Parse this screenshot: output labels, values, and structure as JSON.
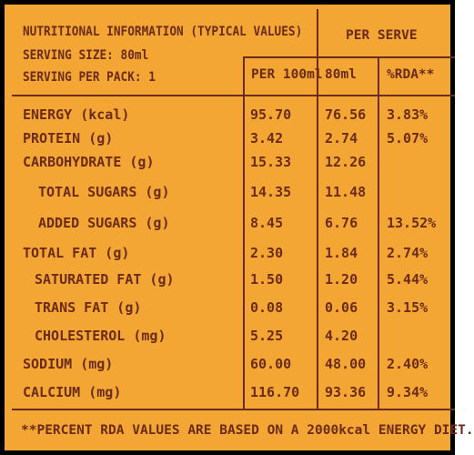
{
  "header": {
    "title": "NUTRITIONAL INFORMATION (TYPICAL VALUES)",
    "serving_size": "SERVING SIZE: 80ml",
    "servings_per_pack": "SERVING PER PACK: 1",
    "per_serve": "PER SERVE",
    "col_per100": "PER 100ml",
    "col_80ml": "80ml",
    "col_rda": "%RDA**"
  },
  "rows": [
    {
      "name": "ENERGY (kcal)",
      "per100": "95.70",
      "per80": "76.56",
      "rda": "3.83%"
    },
    {
      "name": "PROTEIN (g)",
      "per100": "3.42",
      "per80": "2.74",
      "rda": "5.07%"
    },
    {
      "name": "CARBOHYDRATE (g)",
      "per100": "15.33",
      "per80": "12.26",
      "rda": ""
    },
    {
      "name": "TOTAL SUGARS (g)",
      "per100": "14.35",
      "per80": "11.48",
      "rda": ""
    },
    {
      "name": "ADDED SUGARS (g)",
      "per100": "8.45",
      "per80": "6.76",
      "rda": "13.52%"
    },
    {
      "name": "TOTAL FAT (g)",
      "per100": "2.30",
      "per80": "1.84",
      "rda": "2.74%"
    },
    {
      "name": "SATURATED FAT (g)",
      "per100": "1.50",
      "per80": "1.20",
      "rda": "5.44%"
    },
    {
      "name": "TRANS FAT (g)",
      "per100": "0.08",
      "per80": "0.06",
      "rda": "3.15%"
    },
    {
      "name": "CHOLESTEROL (mg)",
      "per100": "5.25",
      "per80": "4.20",
      "rda": ""
    },
    {
      "name": "SODIUM (mg)",
      "per100": "60.00",
      "per80": "48.00",
      "rda": "2.40%"
    },
    {
      "name": "CALCIUM (mg)",
      "per100": "116.70",
      "per80": "93.36",
      "rda": "9.34%"
    }
  ],
  "footnote": "**PERCENT RDA VALUES ARE BASED ON A 2000kcal ENERGY DIET.",
  "colors": {
    "background": "#f3a634",
    "text": "#6b2b16",
    "border": "#000000"
  }
}
